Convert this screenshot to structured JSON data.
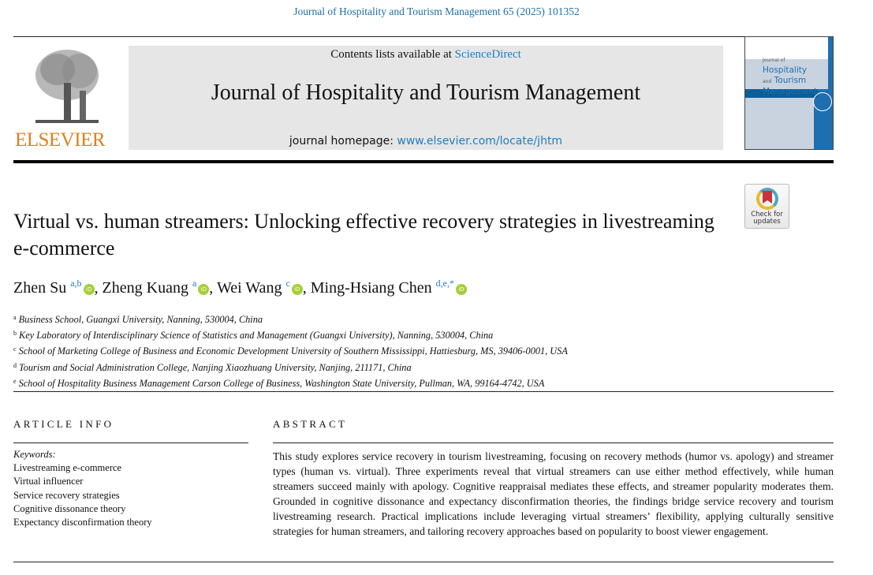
{
  "citation": "Journal of Hospitality and Tourism Management 65 (2025) 101352",
  "publisher_logo": "ELSEVIER",
  "masthead": {
    "contents_prefix": "Contents lists available at ",
    "contents_link": "ScienceDirect",
    "journal_title": "Journal of Hospitality and Tourism Management",
    "homepage_prefix": "journal homepage: ",
    "homepage_link": "www.elsevier.com/locate/jhtm"
  },
  "cover": {
    "line1": "Journal of",
    "line2": "Hospitality",
    "line2b_small": "and",
    "line2b": "Tourism",
    "line3": "Management"
  },
  "check_updates": {
    "line1": "Check for",
    "line2": "updates"
  },
  "title": "Virtual vs. human streamers: Unlocking effective recovery strategies in livestreaming e-commerce",
  "authors": [
    {
      "name": "Zhen Su",
      "sup": "a,b"
    },
    {
      "name": "Zheng Kuang",
      "sup": "a"
    },
    {
      "name": "Wei Wang",
      "sup": "c"
    },
    {
      "name": "Ming-Hsiang Chen",
      "sup": "d,e,*"
    }
  ],
  "affiliations": [
    {
      "key": "a",
      "text": "Business School, Guangxi University, Nanning, 530004, China"
    },
    {
      "key": "b",
      "text": "Key Laboratory of Interdisciplinary Science of Statistics and Management (Guangxi University), Nanning, 530004, China"
    },
    {
      "key": "c",
      "text": "School of Marketing College of Business and Economic Development University of Southern Mississippi, Hattiesburg, MS, 39406-0001, USA"
    },
    {
      "key": "d",
      "text": "Tourism and Social Administration College, Nanjing Xiaozhuang University, Nanjing, 211171, China"
    },
    {
      "key": "e",
      "text": "School of Hospitality Business Management Carson College of Business, Washington State University, Pullman, WA, 99164-4742, USA"
    }
  ],
  "article_info": {
    "heading": "ARTICLE INFO",
    "keywords_label": "Keywords:",
    "keywords": [
      "Livestreaming e-commerce",
      "Virtual influencer",
      "Service recovery strategies",
      "Cognitive dissonance theory",
      "Expectancy disconfirmation theory"
    ]
  },
  "abstract": {
    "heading": "ABSTRACT",
    "text": "This study explores service recovery in tourism livestreaming, focusing on recovery methods (humor vs. apology) and streamer types (human vs. virtual). Three experiments reveal that virtual streamers can use either method effectively, while human streamers succeed mainly with apology. Cognitive reappraisal mediates these effects, and streamer popularity moderates them. Grounded in cognitive dissonance and expectancy disconfirmation theories, the findings bridge service recovery and tourism livestreaming research. Practical implications include leveraging virtual streamers’ flexibility, applying culturally sensitive strategies for human streamers, and tailoring recovery approaches based on popularity to boost viewer engagement."
  },
  "colors": {
    "link": "#1f7dc1",
    "elsevier_orange": "#e07f1a",
    "orcid_green": "#a6ce39"
  }
}
